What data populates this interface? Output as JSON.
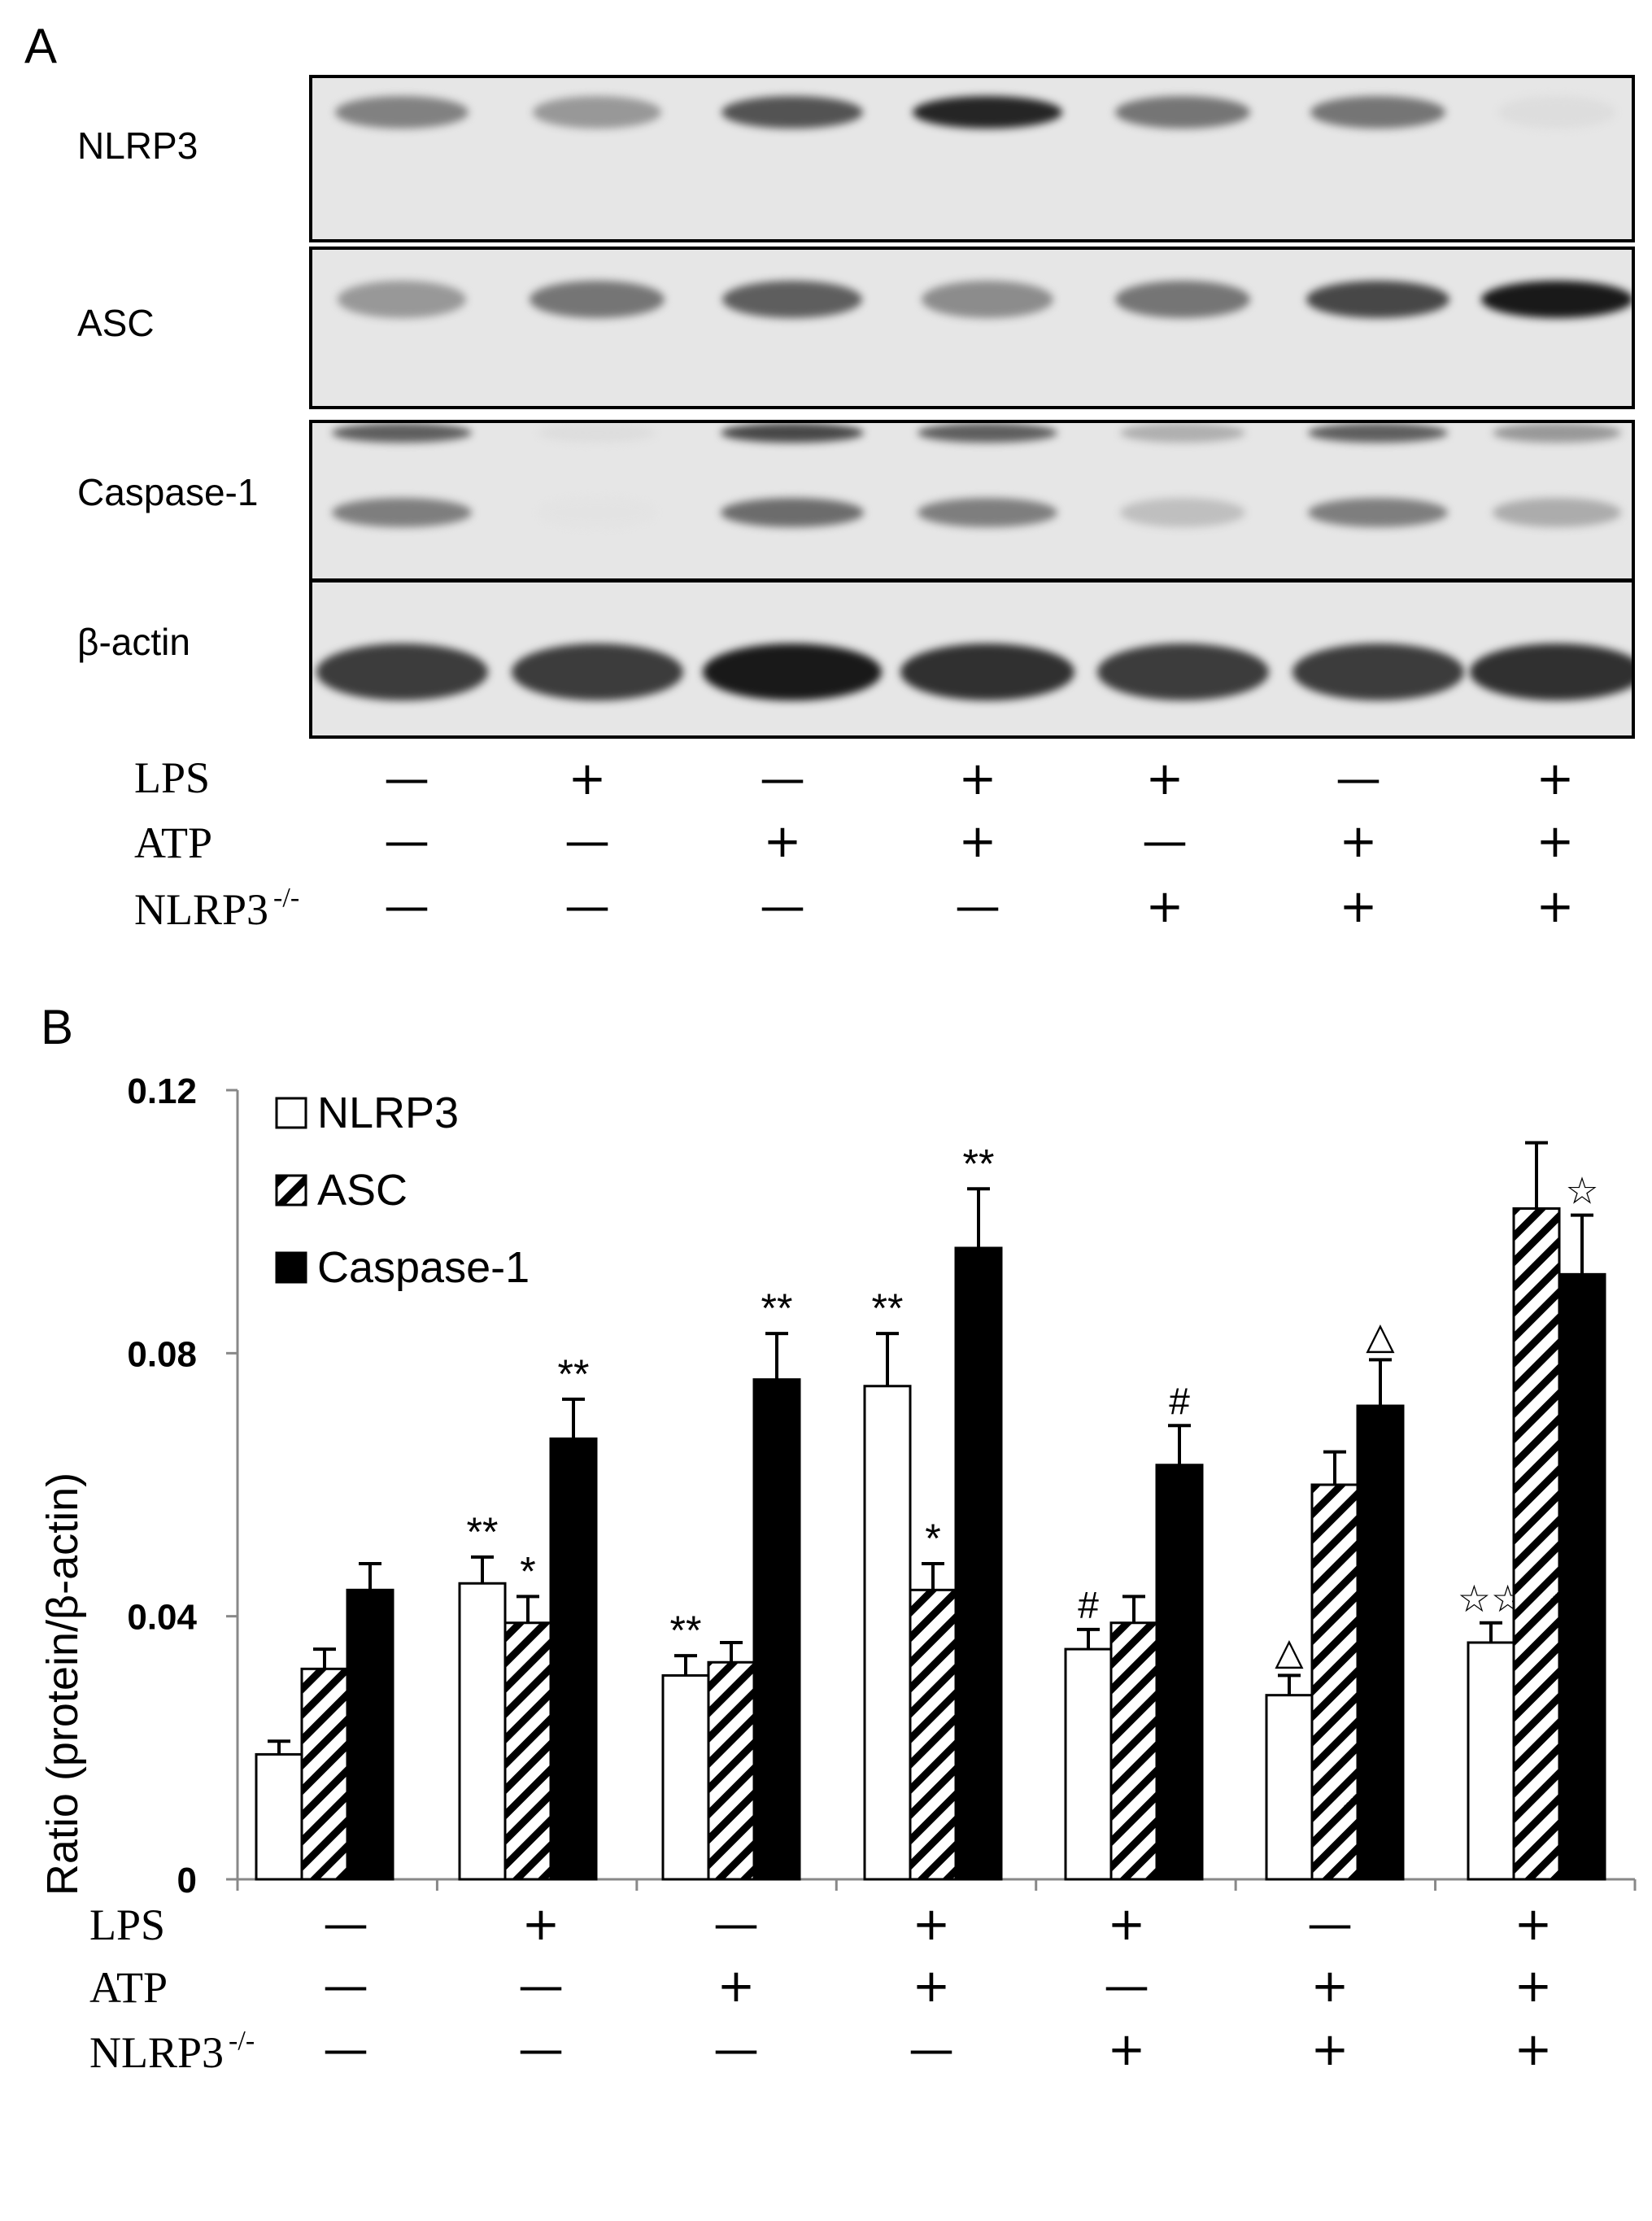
{
  "panel_a": {
    "letter": "A",
    "blot_labels": [
      "NLRP3",
      "ASC",
      "Caspase-1",
      "β-actin"
    ],
    "treatments": [
      {
        "label": "LPS",
        "sup": "",
        "signs": [
          "—",
          "+",
          "—",
          "+",
          "+",
          "—",
          "+"
        ]
      },
      {
        "label": "ATP",
        "sup": "",
        "signs": [
          "—",
          "—",
          "+",
          "+",
          "—",
          "+",
          "+"
        ]
      },
      {
        "label": "NLRP3",
        "sup": "-/-",
        "signs": [
          "—",
          "—",
          "—",
          "—",
          "+",
          "+",
          "+"
        ]
      }
    ],
    "band_intensity": {
      "NLRP3": [
        0.55,
        0.45,
        0.75,
        0.95,
        0.6,
        0.6,
        0.15
      ],
      "ASC": [
        0.45,
        0.6,
        0.7,
        0.5,
        0.6,
        0.8,
        1.0
      ],
      "Caspase-1": [
        0.7,
        0.15,
        0.8,
        0.7,
        0.35,
        0.7,
        0.45
      ],
      "β-actin": [
        0.85,
        0.85,
        1.0,
        0.9,
        0.85,
        0.85,
        0.9
      ]
    }
  },
  "panel_b": {
    "letter": "B",
    "treatments": [
      {
        "label": "LPS",
        "sup": "",
        "signs": [
          "—",
          "+",
          "—",
          "+",
          "+",
          "—",
          "+"
        ]
      },
      {
        "label": "ATP",
        "sup": "",
        "signs": [
          "—",
          "—",
          "+",
          "+",
          "—",
          "+",
          "+"
        ]
      },
      {
        "label": "NLRP3",
        "sup": "-/-",
        "signs": [
          "—",
          "—",
          "—",
          "—",
          "+",
          "+",
          "+"
        ]
      }
    ]
  },
  "chart_data": {
    "type": "bar",
    "ylabel": "Ratio (protein/β-actin)",
    "ylim": [
      0,
      0.12
    ],
    "yticks": [
      "0",
      "0.04",
      "0.08",
      "0.12"
    ],
    "ytick_values": [
      0,
      0.04,
      0.08,
      0.12
    ],
    "legend_position": "top-left",
    "groups": 7,
    "series": [
      {
        "name": "NLRP3",
        "fill": "white",
        "values": [
          0.019,
          0.045,
          0.031,
          0.075,
          0.035,
          0.028,
          0.036
        ],
        "errors": [
          0.002,
          0.004,
          0.003,
          0.008,
          0.003,
          0.003,
          0.003
        ],
        "marks": [
          "",
          "**",
          "**",
          "**",
          "#",
          "△",
          "☆☆"
        ]
      },
      {
        "name": "ASC",
        "fill": "hatch",
        "values": [
          0.032,
          0.039,
          0.033,
          0.044,
          0.039,
          0.06,
          0.102
        ],
        "errors": [
          0.003,
          0.004,
          0.003,
          0.004,
          0.004,
          0.005,
          0.01
        ],
        "marks": [
          "",
          "*",
          "",
          "*",
          "",
          "",
          ""
        ]
      },
      {
        "name": "Caspase-1",
        "fill": "black",
        "values": [
          0.044,
          0.067,
          0.076,
          0.096,
          0.063,
          0.072,
          0.092
        ],
        "errors": [
          0.004,
          0.006,
          0.007,
          0.009,
          0.006,
          0.007,
          0.009
        ],
        "marks": [
          "",
          "**",
          "**",
          "**",
          "#",
          "△",
          "☆"
        ]
      }
    ]
  }
}
